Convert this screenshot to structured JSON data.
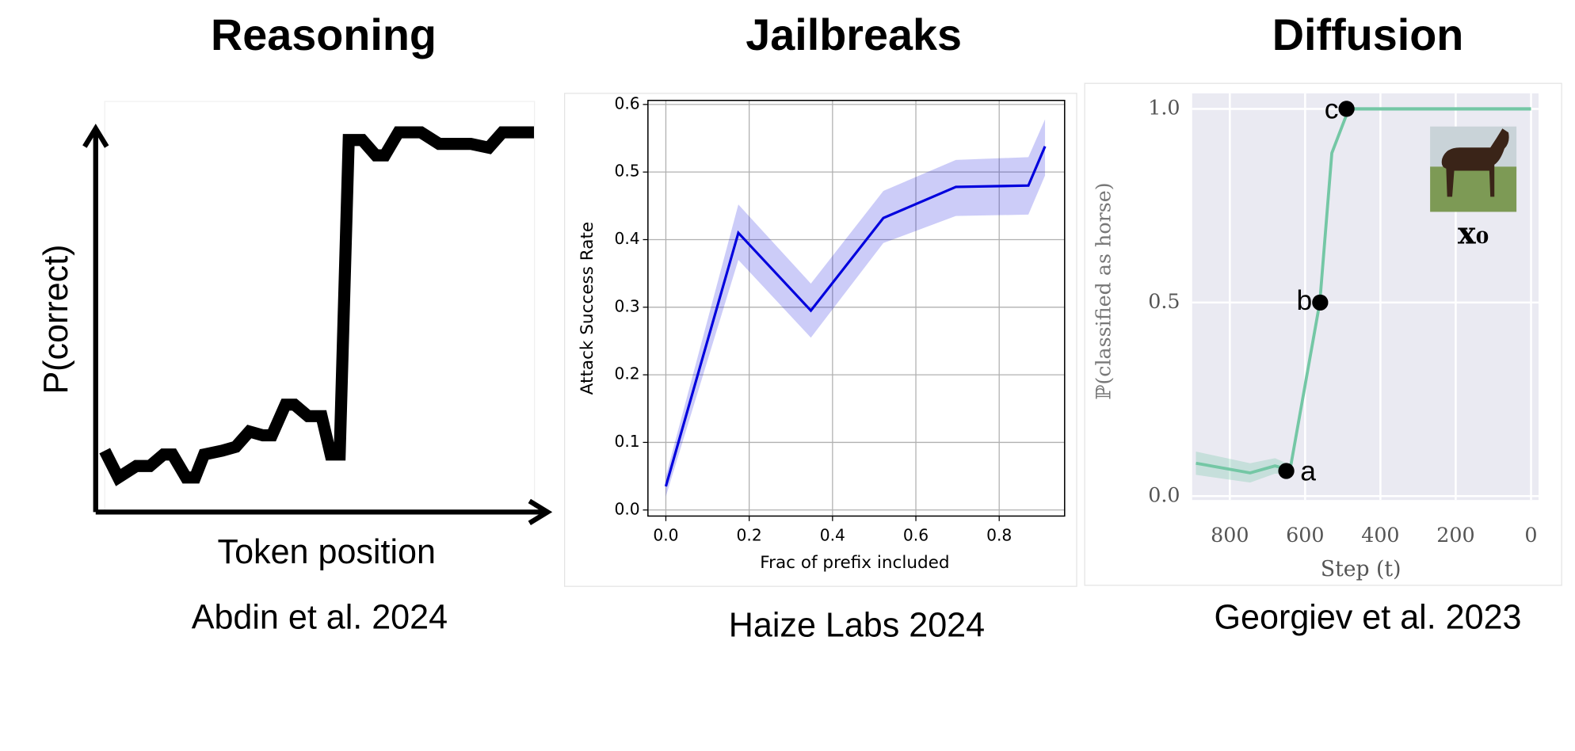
{
  "chart_data": [
    {
      "type": "line",
      "title": "Reasoning",
      "caption": "Abdin et al. 2024",
      "xlabel": "Token position",
      "ylabel": "P(correct)",
      "xlim": [
        0,
        1
      ],
      "ylim": [
        0,
        1
      ],
      "color": "#000000",
      "x": [
        0.02,
        0.05,
        0.09,
        0.12,
        0.15,
        0.17,
        0.2,
        0.22,
        0.24,
        0.28,
        0.31,
        0.34,
        0.37,
        0.39,
        0.42,
        0.44,
        0.47,
        0.5,
        0.52,
        0.54,
        0.56,
        0.59,
        0.62,
        0.64,
        0.67,
        0.72,
        0.76,
        0.83,
        0.87,
        0.9,
        0.97
      ],
      "values": [
        0.16,
        0.09,
        0.12,
        0.12,
        0.15,
        0.15,
        0.09,
        0.09,
        0.15,
        0.16,
        0.17,
        0.21,
        0.2,
        0.2,
        0.28,
        0.28,
        0.25,
        0.25,
        0.15,
        0.15,
        0.97,
        0.97,
        0.93,
        0.93,
        0.99,
        0.99,
        0.96,
        0.96,
        0.95,
        0.99,
        0.99
      ]
    },
    {
      "type": "line",
      "title": "Jailbreaks",
      "caption": "Haize Labs 2024",
      "xlabel": "Frac of prefix included",
      "ylabel": "Attack Success Rate",
      "xlim": [
        -0.043,
        0.957
      ],
      "ylim": [
        -0.009,
        0.606
      ],
      "grid": true,
      "color": "#0000dd",
      "xticks": [
        {
          "value": 0,
          "label": "0.0"
        },
        {
          "value": 0.2,
          "label": "0.2"
        },
        {
          "value": 0.4,
          "label": "0.4"
        },
        {
          "value": 0.6,
          "label": "0.6"
        },
        {
          "value": 0.8,
          "label": "0.8"
        }
      ],
      "yticks": [
        {
          "value": 0,
          "label": "0.0"
        },
        0.1,
        0.2,
        0.3,
        0.4,
        0.5,
        0.6
      ],
      "x": [
        0,
        0.174,
        0.348,
        0.522,
        0.696,
        0.87,
        0.91
      ],
      "values": [
        0.035,
        0.41,
        0.295,
        0.432,
        0.478,
        0.48,
        0.538
      ],
      "lower": [
        0.02,
        0.37,
        0.255,
        0.395,
        0.435,
        0.437,
        0.495
      ],
      "upper": [
        0.05,
        0.452,
        0.335,
        0.472,
        0.518,
        0.522,
        0.578
      ]
    },
    {
      "type": "line",
      "title": "Diffusion",
      "caption": "Georgiev et al. 2023",
      "xlabel": "Step (t)",
      "ylabel": "ℙ(classified as horse)",
      "inset_label": "x₀",
      "xlim": [
        900,
        -20
      ],
      "ylim": [
        -0.01,
        1.04
      ],
      "grid": true,
      "color": "#74c7a5",
      "xticks": [
        800,
        600,
        400,
        200,
        0
      ],
      "yticks": [
        {
          "value": 0,
          "label": "0.0"
        },
        0.5,
        {
          "value": 1,
          "label": "1.0"
        }
      ],
      "x": [
        890,
        746,
        680,
        640,
        561,
        529,
        484,
        0
      ],
      "values": [
        0.085,
        0.06,
        0.078,
        0.068,
        0.5,
        0.886,
        1.0,
        1.0
      ],
      "lower": [
        0.055,
        0.035,
        0.058,
        0.055,
        0.49,
        0.876,
        0.995,
        0.995
      ],
      "upper": [
        0.115,
        0.085,
        0.098,
        0.081,
        0.51,
        0.896,
        1.005,
        1.005
      ],
      "annotations": [
        {
          "text": "a",
          "x": 650,
          "y": 0.065
        },
        {
          "text": "b",
          "x": 560,
          "y": 0.5
        },
        {
          "text": "c",
          "x": 490,
          "y": 1.0
        }
      ]
    }
  ]
}
